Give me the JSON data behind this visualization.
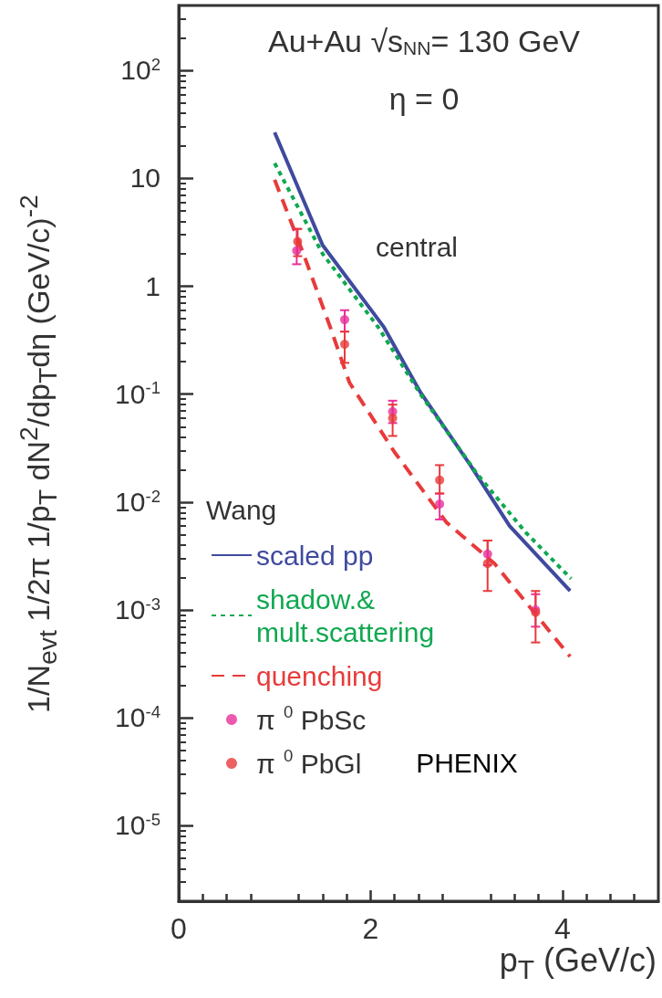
{
  "chart_data": {
    "type": "line",
    "annotations": [
      "Au+Au √s$_{NN}$= 130 GeV",
      "η = 0",
      "central",
      "PHENIX"
    ],
    "xlabel": "p$_{T}$ (GeV/c)",
    "ylabel": "1/N$_{evt}$ 1/2π 1/p$_{T}$ dN$^{2}$/dp$_{T}$dη (GeV/c)$^{-2}$",
    "legend_title": "Wang",
    "legend": "bottom left",
    "log": "y",
    "grid": false,
    "xlim": [
      0,
      5
    ],
    "xticks": [
      0,
      2,
      4
    ],
    "ylim": [
      2e-06,
      400
    ],
    "yticks": [
      {
        "value": 1e-05,
        "label": "10$^{-5}$"
      },
      {
        "value": 0.0001,
        "label": "10$^{-4}$"
      },
      {
        "value": 0.001,
        "label": "10$^{-3}$"
      },
      {
        "value": 0.01,
        "label": "10$^{-2}$"
      },
      {
        "value": 0.1,
        "label": "10$^{-1}$"
      },
      1,
      10,
      {
        "value": 100,
        "label": "10$^{2}$"
      }
    ],
    "series": [
      {
        "name": "scaled pp",
        "type": "line",
        "line_style": "solid",
        "color": "#3f4a9e",
        "x": [
          1.0,
          1.5,
          2.14,
          2.52,
          3.04,
          3.45,
          4.08
        ],
        "values": [
          26.7,
          2.4,
          0.417,
          0.104,
          0.022,
          0.006,
          0.0015
        ]
      },
      {
        "name": "shadow.& mult.scattering",
        "type": "line",
        "line_style": "dotted",
        "color": "#10a850",
        "x": [
          1.0,
          1.5,
          2.08,
          2.52,
          3.12,
          3.62,
          4.09
        ],
        "values": [
          13.8,
          2.0,
          0.417,
          0.1,
          0.0178,
          0.0052,
          0.00195
        ]
      },
      {
        "name": "quenching",
        "type": "line",
        "line_style": "dashed",
        "color": "#e83a3a",
        "x": [
          1.0,
          1.3,
          1.58,
          1.78,
          2.25,
          2.79,
          3.29,
          4.08
        ],
        "values": [
          9.7,
          2.0,
          0.417,
          0.128,
          0.029,
          0.0065,
          0.0027,
          0.00037
        ]
      },
      {
        "name": "π$^{0}$ PbSc",
        "type": "scatter",
        "marker": "circle",
        "color": "#e8309a",
        "x": [
          1.23,
          1.73,
          2.23,
          2.72,
          3.22,
          3.72
        ],
        "values": [
          2.14,
          0.49,
          0.069,
          0.0096,
          0.0033,
          0.001
        ],
        "errors": [
          [
            1.6,
            3.4
          ],
          [
            0.38,
            0.6
          ],
          [
            0.054,
            0.087
          ],
          [
            0.0069,
            0.012
          ],
          [
            0.0026,
            0.0044
          ],
          [
            0.0007,
            0.0014
          ]
        ]
      },
      {
        "name": "π$^{0}$ PbGl",
        "type": "scatter",
        "marker": "circle",
        "color": "#e83a3a",
        "x": [
          1.24,
          1.73,
          2.23,
          2.72,
          3.22,
          3.72
        ],
        "values": [
          2.6,
          0.29,
          0.06,
          0.016,
          0.0027,
          0.00095
        ],
        "errors": [
          [
            1.9,
            3.4
          ],
          [
            0.195,
            0.38
          ],
          [
            0.041,
            0.08
          ],
          [
            0.012,
            0.022
          ],
          [
            0.0015,
            0.0044
          ],
          [
            0.0005,
            0.0015
          ]
        ]
      }
    ]
  }
}
